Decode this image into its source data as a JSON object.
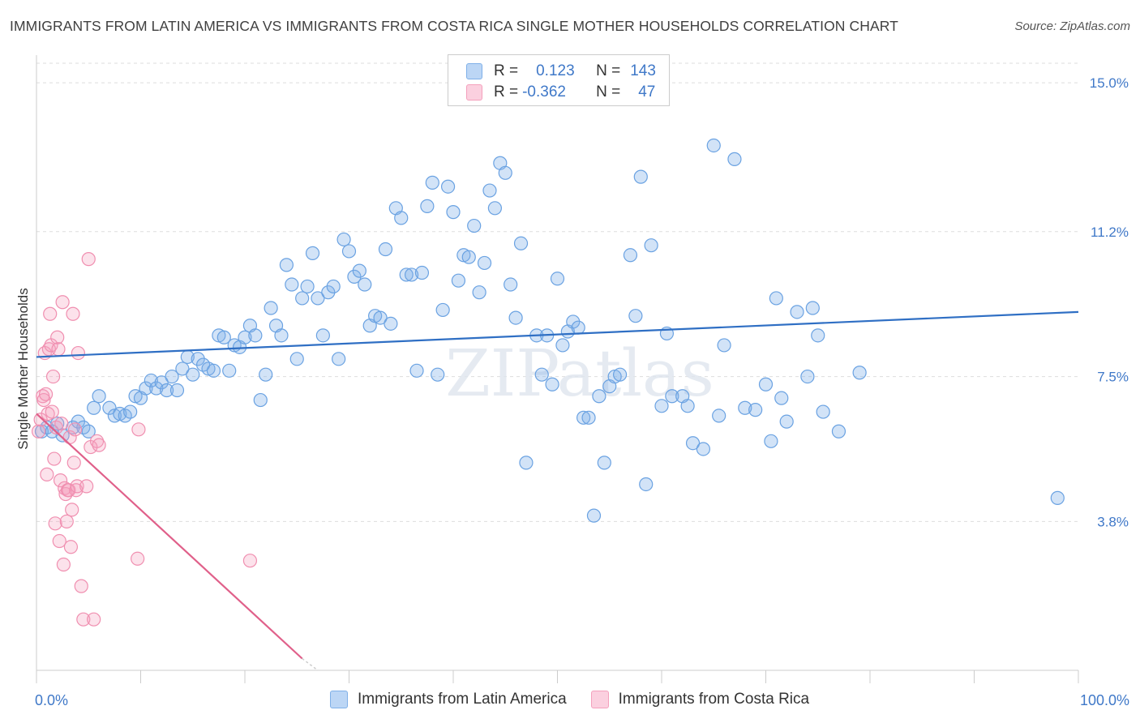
{
  "title": "IMMIGRANTS FROM LATIN AMERICA VS IMMIGRANTS FROM COSTA RICA SINGLE MOTHER HOUSEHOLDS CORRELATION CHART",
  "source": "Source: ZipAtlas.com",
  "watermark": "ZIPatlas",
  "legend": {
    "rows": [
      {
        "r_label": "R =",
        "r_value": "0.123",
        "n_label": "N =",
        "n_value": "143",
        "color": "#7fb0e8"
      },
      {
        "r_label": "R =",
        "r_value": "-0.362",
        "n_label": "N =",
        "n_value": "47",
        "color": "#f4a0bc"
      }
    ]
  },
  "chart_data": {
    "type": "scatter",
    "title": "IMMIGRANTS FROM LATIN AMERICA VS IMMIGRANTS FROM COSTA RICA SINGLE MOTHER HOUSEHOLDS CORRELATION CHART",
    "xlabel": "",
    "ylabel": "Single Mother Households",
    "xlim": [
      0,
      100
    ],
    "ylim": [
      0,
      15.5
    ],
    "x_tick_labels": [
      "0.0%",
      "100.0%"
    ],
    "y_ticks": [
      3.8,
      7.5,
      11.2,
      15.0
    ],
    "y_tick_labels": [
      "3.8%",
      "7.5%",
      "11.2%",
      "15.0%"
    ],
    "grid": "horizontal dashed",
    "legend_position": "top-center",
    "series": [
      {
        "name": "Immigrants from Latin America",
        "color": "#7fb0e8",
        "line_color": "#2f6fc4",
        "trend": [
          [
            0,
            8.0
          ],
          [
            100,
            9.15
          ]
        ],
        "points": [
          [
            0.5,
            6.1
          ],
          [
            1,
            6.2
          ],
          [
            1.5,
            6.1
          ],
          [
            2,
            6.3
          ],
          [
            2.5,
            6.0
          ],
          [
            3.5,
            6.2
          ],
          [
            4,
            6.35
          ],
          [
            4.5,
            6.2
          ],
          [
            5,
            6.1
          ],
          [
            5.5,
            6.7
          ],
          [
            6,
            7.0
          ],
          [
            7,
            6.7
          ],
          [
            7.5,
            6.5
          ],
          [
            8,
            6.55
          ],
          [
            8.5,
            6.5
          ],
          [
            9,
            6.6
          ],
          [
            9.5,
            7.0
          ],
          [
            10,
            6.95
          ],
          [
            10.5,
            7.2
          ],
          [
            11,
            7.4
          ],
          [
            11.5,
            7.2
          ],
          [
            12,
            7.35
          ],
          [
            12.5,
            7.15
          ],
          [
            13,
            7.5
          ],
          [
            13.5,
            7.15
          ],
          [
            14,
            7.7
          ],
          [
            14.5,
            8.0
          ],
          [
            15,
            7.55
          ],
          [
            15.5,
            7.95
          ],
          [
            16,
            7.8
          ],
          [
            16.5,
            7.7
          ],
          [
            17,
            7.65
          ],
          [
            17.5,
            8.55
          ],
          [
            18,
            8.5
          ],
          [
            18.5,
            7.65
          ],
          [
            19,
            8.3
          ],
          [
            19.5,
            8.25
          ],
          [
            20,
            8.5
          ],
          [
            20.5,
            8.8
          ],
          [
            21,
            8.55
          ],
          [
            21.5,
            6.9
          ],
          [
            22,
            7.55
          ],
          [
            22.5,
            9.25
          ],
          [
            23,
            8.8
          ],
          [
            23.5,
            8.55
          ],
          [
            24,
            10.35
          ],
          [
            24.5,
            9.85
          ],
          [
            25,
            7.95
          ],
          [
            25.5,
            9.5
          ],
          [
            26,
            9.8
          ],
          [
            26.5,
            10.65
          ],
          [
            27,
            9.5
          ],
          [
            27.5,
            8.55
          ],
          [
            28,
            9.65
          ],
          [
            28.5,
            9.8
          ],
          [
            29,
            7.95
          ],
          [
            29.5,
            11.0
          ],
          [
            30,
            10.7
          ],
          [
            30.5,
            10.05
          ],
          [
            31,
            10.2
          ],
          [
            31.5,
            9.85
          ],
          [
            32,
            8.8
          ],
          [
            32.5,
            9.05
          ],
          [
            33,
            9.0
          ],
          [
            33.5,
            10.75
          ],
          [
            34,
            8.85
          ],
          [
            34.5,
            11.8
          ],
          [
            35,
            11.55
          ],
          [
            35.5,
            10.1
          ],
          [
            36,
            10.1
          ],
          [
            36.5,
            7.65
          ],
          [
            37,
            10.15
          ],
          [
            37.5,
            11.85
          ],
          [
            38,
            12.45
          ],
          [
            38.5,
            7.55
          ],
          [
            39,
            9.2
          ],
          [
            39.5,
            12.35
          ],
          [
            40,
            11.7
          ],
          [
            40.5,
            9.95
          ],
          [
            41,
            10.6
          ],
          [
            41.5,
            10.55
          ],
          [
            42,
            11.35
          ],
          [
            42.5,
            9.65
          ],
          [
            43,
            10.4
          ],
          [
            43.5,
            12.25
          ],
          [
            44,
            11.8
          ],
          [
            44.5,
            12.95
          ],
          [
            45,
            12.7
          ],
          [
            45.5,
            9.85
          ],
          [
            46,
            9.0
          ],
          [
            46.5,
            10.9
          ],
          [
            47,
            5.3
          ],
          [
            48,
            8.55
          ],
          [
            48.5,
            7.55
          ],
          [
            49,
            8.55
          ],
          [
            49.5,
            7.3
          ],
          [
            50,
            10.0
          ],
          [
            50.5,
            8.3
          ],
          [
            51,
            8.65
          ],
          [
            51.5,
            8.9
          ],
          [
            52,
            8.75
          ],
          [
            52.5,
            6.45
          ],
          [
            53,
            6.45
          ],
          [
            53.5,
            3.95
          ],
          [
            54,
            7.0
          ],
          [
            54.5,
            5.3
          ],
          [
            55,
            7.25
          ],
          [
            55.5,
            7.5
          ],
          [
            56,
            7.55
          ],
          [
            57,
            10.6
          ],
          [
            57.5,
            9.05
          ],
          [
            58,
            12.6
          ],
          [
            58.5,
            4.75
          ],
          [
            59,
            10.85
          ],
          [
            60,
            6.75
          ],
          [
            60.5,
            8.6
          ],
          [
            61,
            7.0
          ],
          [
            62,
            7.0
          ],
          [
            62.5,
            6.75
          ],
          [
            63,
            5.8
          ],
          [
            64,
            5.65
          ],
          [
            65,
            13.4
          ],
          [
            65.5,
            6.5
          ],
          [
            66,
            8.3
          ],
          [
            67,
            13.05
          ],
          [
            68,
            6.7
          ],
          [
            69,
            6.65
          ],
          [
            70,
            7.3
          ],
          [
            70.5,
            5.85
          ],
          [
            71,
            9.5
          ],
          [
            71.5,
            6.95
          ],
          [
            72,
            6.35
          ],
          [
            73,
            9.15
          ],
          [
            74,
            7.5
          ],
          [
            74.5,
            9.25
          ],
          [
            75,
            8.55
          ],
          [
            75.5,
            6.6
          ],
          [
            77,
            6.1
          ],
          [
            79,
            7.6
          ],
          [
            98,
            4.4
          ]
        ]
      },
      {
        "name": "Immigrants from Costa Rica",
        "color": "#f4a0bc",
        "line_color": "#e0608a",
        "trend": [
          [
            0,
            6.55
          ],
          [
            25.5,
            0.3
          ]
        ],
        "trend_extension": [
          [
            25.5,
            0.3
          ],
          [
            27,
            0
          ]
        ],
        "points": [
          [
            0.2,
            6.1
          ],
          [
            0.4,
            6.4
          ],
          [
            0.6,
            7.0
          ],
          [
            0.7,
            6.9
          ],
          [
            0.8,
            8.1
          ],
          [
            0.9,
            7.05
          ],
          [
            1.0,
            5.0
          ],
          [
            1.1,
            6.55
          ],
          [
            1.2,
            8.2
          ],
          [
            1.3,
            9.1
          ],
          [
            1.4,
            8.3
          ],
          [
            1.5,
            6.6
          ],
          [
            1.6,
            7.5
          ],
          [
            1.7,
            5.4
          ],
          [
            1.8,
            3.75
          ],
          [
            1.9,
            6.2
          ],
          [
            2.0,
            8.5
          ],
          [
            2.1,
            8.2
          ],
          [
            2.2,
            3.3
          ],
          [
            2.3,
            4.85
          ],
          [
            2.4,
            6.3
          ],
          [
            2.5,
            9.4
          ],
          [
            2.6,
            2.7
          ],
          [
            2.7,
            4.65
          ],
          [
            2.8,
            4.5
          ],
          [
            2.9,
            3.8
          ],
          [
            3.0,
            4.6
          ],
          [
            3.1,
            4.6
          ],
          [
            3.2,
            5.95
          ],
          [
            3.3,
            3.15
          ],
          [
            3.4,
            4.1
          ],
          [
            3.5,
            9.1
          ],
          [
            3.6,
            5.3
          ],
          [
            3.7,
            6.15
          ],
          [
            3.8,
            4.6
          ],
          [
            3.9,
            4.7
          ],
          [
            4.0,
            8.1
          ],
          [
            4.3,
            2.15
          ],
          [
            4.5,
            1.3
          ],
          [
            4.8,
            4.7
          ],
          [
            5.0,
            10.5
          ],
          [
            5.2,
            5.7
          ],
          [
            5.5,
            1.3
          ],
          [
            5.8,
            5.85
          ],
          [
            6.0,
            5.75
          ],
          [
            9.7,
            2.85
          ],
          [
            9.8,
            6.15
          ],
          [
            20.5,
            2.8
          ]
        ]
      }
    ]
  },
  "bottom_legend": {
    "items": [
      {
        "label": "Immigrants from Latin America",
        "color": "#7fb0e8"
      },
      {
        "label": "Immigrants from Costa Rica",
        "color": "#f4a0bc"
      }
    ]
  }
}
